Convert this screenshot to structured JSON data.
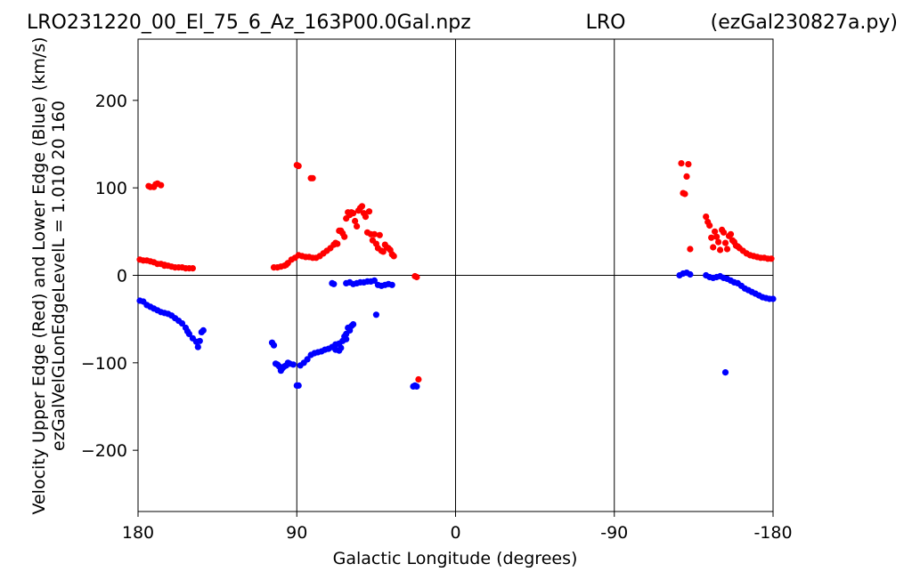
{
  "header": {
    "left": "LRO231220_00_El_75_6_Az_163P00.0Gal.npz",
    "center": "LRO",
    "right": "(ezGal230827a.py)"
  },
  "chart_data": {
    "type": "scatter",
    "xlabel": "Galactic Longitude (degrees)",
    "ylabel_line1": "Velocity Upper Edge (Red) and Lower Edge (Blue)  (km/s)",
    "ylabel_line2": "ezGalVelGLonEdgeLevelL = 1.010  20  160",
    "xlim": [
      180,
      -180
    ],
    "ylim": [
      -270,
      270
    ],
    "x_ticks": [
      180,
      90,
      0,
      -90,
      -180
    ],
    "x_tick_labels": [
      "180",
      "90",
      "0",
      "-90",
      "-180"
    ],
    "y_ticks": [
      200,
      100,
      0,
      -100,
      -200
    ],
    "y_tick_labels": [
      "200",
      "100",
      "0",
      "−100",
      "−200"
    ],
    "vertical_lines": [
      90,
      0,
      -90
    ],
    "horizontal_lines": [
      0
    ],
    "colors": {
      "upper": "#ff0000",
      "lower": "#0000ff"
    },
    "series": [
      {
        "color": "red",
        "points": [
          [
            179,
            18
          ],
          [
            177,
            17
          ],
          [
            175,
            17
          ],
          [
            173,
            16
          ],
          [
            171,
            15
          ],
          [
            169,
            13
          ],
          [
            167,
            13
          ],
          [
            165,
            11
          ],
          [
            174,
            102
          ],
          [
            173,
            101
          ],
          [
            171,
            101
          ],
          [
            170,
            104
          ],
          [
            169,
            105
          ],
          [
            167,
            103
          ],
          [
            165,
            12
          ],
          [
            163,
            11
          ],
          [
            161,
            10
          ],
          [
            159,
            9
          ],
          [
            157,
            9
          ],
          [
            155,
            9
          ],
          [
            153,
            8
          ],
          [
            151,
            8
          ],
          [
            149,
            8
          ],
          [
            103,
            9
          ],
          [
            101,
            9
          ],
          [
            99,
            10
          ],
          [
            97,
            11
          ],
          [
            96,
            12
          ],
          [
            95,
            14
          ],
          [
            93,
            18
          ],
          [
            91,
            20
          ],
          [
            89,
            23
          ],
          [
            87,
            22
          ],
          [
            85,
            21
          ],
          [
            90,
            126
          ],
          [
            89,
            125
          ],
          [
            82,
            111
          ],
          [
            81,
            111
          ],
          [
            83,
            21
          ],
          [
            81,
            20
          ],
          [
            79,
            20
          ],
          [
            77,
            22
          ],
          [
            75,
            25
          ],
          [
            73,
            28
          ],
          [
            71,
            31
          ],
          [
            69,
            35
          ],
          [
            68,
            37
          ],
          [
            67,
            36
          ],
          [
            66,
            51
          ],
          [
            65,
            51
          ],
          [
            64,
            48
          ],
          [
            63,
            44
          ],
          [
            62,
            65
          ],
          [
            61,
            72
          ],
          [
            60,
            69
          ],
          [
            59,
            72
          ],
          [
            58,
            71
          ],
          [
            57,
            62
          ],
          [
            56,
            56
          ],
          [
            55,
            74
          ],
          [
            54,
            77
          ],
          [
            53,
            79
          ],
          [
            52,
            71
          ],
          [
            51,
            67
          ],
          [
            50,
            49
          ],
          [
            49,
            73
          ],
          [
            48,
            47
          ],
          [
            47,
            40
          ],
          [
            46,
            47
          ],
          [
            45,
            36
          ],
          [
            44,
            31
          ],
          [
            43,
            46
          ],
          [
            42,
            28
          ],
          [
            41,
            27
          ],
          [
            40,
            35
          ],
          [
            39,
            32
          ],
          [
            38,
            31
          ],
          [
            37,
            29
          ],
          [
            36,
            24
          ],
          [
            35,
            22
          ],
          [
            23,
            -1
          ],
          [
            22,
            -2
          ],
          [
            21,
            -119
          ],
          [
            -128,
            128
          ],
          [
            -129,
            94
          ],
          [
            -130,
            93
          ],
          [
            -131,
            113
          ],
          [
            -132,
            127
          ],
          [
            -133,
            30
          ],
          [
            -142,
            67
          ],
          [
            -143,
            61
          ],
          [
            -144,
            57
          ],
          [
            -145,
            43
          ],
          [
            -146,
            32
          ],
          [
            -147,
            50
          ],
          [
            -148,
            44
          ],
          [
            -149,
            38
          ],
          [
            -150,
            29
          ],
          [
            -151,
            52
          ],
          [
            -152,
            49
          ],
          [
            -153,
            37
          ],
          [
            -154,
            30
          ],
          [
            -155,
            45
          ],
          [
            -156,
            47
          ],
          [
            -157,
            40
          ],
          [
            -158,
            38
          ],
          [
            -159,
            34
          ],
          [
            -160,
            33
          ],
          [
            -161,
            31
          ],
          [
            -163,
            28
          ],
          [
            -165,
            25
          ],
          [
            -167,
            23
          ],
          [
            -169,
            22
          ],
          [
            -171,
            21
          ],
          [
            -173,
            20
          ],
          [
            -175,
            20
          ],
          [
            -177,
            19
          ],
          [
            -179,
            19
          ]
        ]
      },
      {
        "color": "blue",
        "points": [
          [
            179,
            -29
          ],
          [
            177,
            -30
          ],
          [
            175,
            -34
          ],
          [
            173,
            -36
          ],
          [
            171,
            -38
          ],
          [
            169,
            -40
          ],
          [
            167,
            -42
          ],
          [
            165,
            -43
          ],
          [
            163,
            -44
          ],
          [
            161,
            -46
          ],
          [
            159,
            -49
          ],
          [
            157,
            -52
          ],
          [
            155,
            -55
          ],
          [
            153,
            -60
          ],
          [
            152,
            -64
          ],
          [
            151,
            -67
          ],
          [
            149,
            -72
          ],
          [
            147,
            -76
          ],
          [
            146,
            -82
          ],
          [
            145,
            -75
          ],
          [
            144,
            -65
          ],
          [
            143,
            -63
          ],
          [
            104,
            -77
          ],
          [
            103,
            -80
          ],
          [
            102,
            -101
          ],
          [
            101,
            -102
          ],
          [
            100,
            -104
          ],
          [
            99,
            -109
          ],
          [
            98,
            -106
          ],
          [
            97,
            -104
          ],
          [
            96,
            -103
          ],
          [
            95,
            -100
          ],
          [
            94,
            -101
          ],
          [
            92,
            -102
          ],
          [
            90,
            -126
          ],
          [
            89,
            -126
          ],
          [
            88,
            -103
          ],
          [
            86,
            -100
          ],
          [
            84,
            -96
          ],
          [
            82,
            -91
          ],
          [
            80,
            -89
          ],
          [
            78,
            -88
          ],
          [
            76,
            -87
          ],
          [
            74,
            -85
          ],
          [
            72,
            -84
          ],
          [
            70,
            -82
          ],
          [
            68,
            -79
          ],
          [
            66,
            -78
          ],
          [
            64,
            -75
          ],
          [
            62,
            -73
          ],
          [
            70,
            -9
          ],
          [
            69,
            -10
          ],
          [
            68,
            -85
          ],
          [
            66,
            -86
          ],
          [
            65,
            -83
          ],
          [
            63,
            -70
          ],
          [
            62,
            -67
          ],
          [
            61,
            -60
          ],
          [
            60,
            -63
          ],
          [
            59,
            -58
          ],
          [
            58,
            -56
          ],
          [
            62,
            -9
          ],
          [
            60,
            -8
          ],
          [
            58,
            -10
          ],
          [
            56,
            -9
          ],
          [
            54,
            -8
          ],
          [
            52,
            -8
          ],
          [
            50,
            -7
          ],
          [
            48,
            -7
          ],
          [
            46,
            -6
          ],
          [
            45,
            -45
          ],
          [
            44,
            -11
          ],
          [
            42,
            -12
          ],
          [
            40,
            -11
          ],
          [
            38,
            -10
          ],
          [
            36,
            -11
          ],
          [
            24,
            -127
          ],
          [
            23,
            -126
          ],
          [
            22,
            -127
          ],
          [
            -127,
            0
          ],
          [
            -129,
            2
          ],
          [
            -131,
            3
          ],
          [
            -133,
            1
          ],
          [
            -142,
            0
          ],
          [
            -144,
            -2
          ],
          [
            -146,
            -3
          ],
          [
            -148,
            -2
          ],
          [
            -150,
            -1
          ],
          [
            -152,
            -3
          ],
          [
            -153,
            -111
          ],
          [
            -154,
            -4
          ],
          [
            -156,
            -6
          ],
          [
            -158,
            -8
          ],
          [
            -160,
            -9
          ],
          [
            -162,
            -12
          ],
          [
            -164,
            -15
          ],
          [
            -166,
            -17
          ],
          [
            -168,
            -19
          ],
          [
            -170,
            -21
          ],
          [
            -172,
            -23
          ],
          [
            -174,
            -25
          ],
          [
            -176,
            -26
          ],
          [
            -178,
            -27
          ],
          [
            -180,
            -27
          ]
        ]
      }
    ]
  }
}
